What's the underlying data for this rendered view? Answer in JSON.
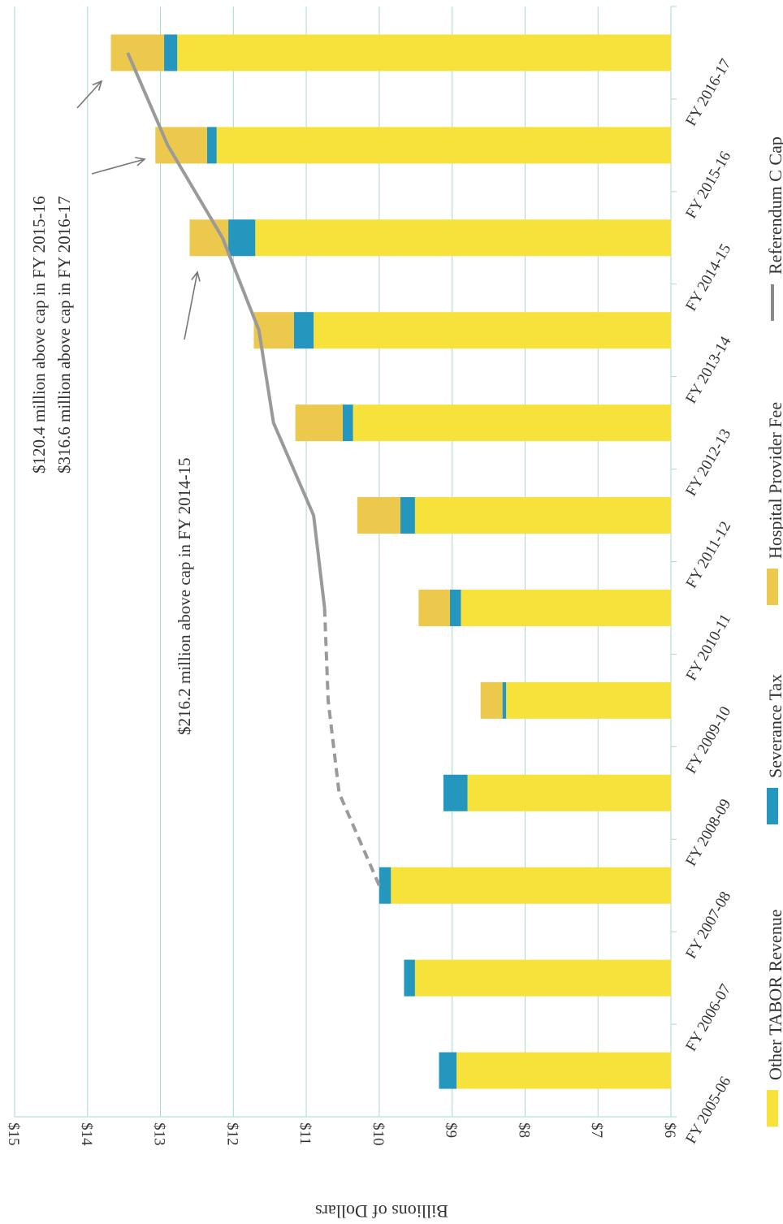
{
  "chart_data": {
    "type": "bar",
    "stacked": true,
    "orientation": "horizontal",
    "xlabel": "",
    "ylabel": "Billions of Dollars",
    "ylim": [
      6,
      15
    ],
    "ticks": [
      "$6",
      "$7",
      "$8",
      "$9",
      "$10",
      "$11",
      "$12",
      "$13",
      "$14",
      "$15"
    ],
    "tick_values": [
      6,
      7,
      8,
      9,
      10,
      11,
      12,
      13,
      14,
      15
    ],
    "grid": true,
    "legend_position": "bottom",
    "categories": [
      "FY 2005-06",
      "FY 2006-07",
      "FY 2007-08",
      "FY 2008-09",
      "FY 2009-10",
      "FY 2010-11",
      "FY 2011-12",
      "FY 2012-13",
      "FY 2013-14",
      "FY 2014-15",
      "FY 2015-16",
      "FY 2016-17"
    ],
    "series": [
      {
        "name": "Other TABOR Revenue",
        "color": "#f7e23c",
        "values": [
          2.94,
          3.51,
          3.84,
          2.79,
          2.26,
          2.88,
          3.51,
          4.36,
          4.9,
          5.7,
          6.23,
          6.77
        ]
      },
      {
        "name": "Severance Tax",
        "color": "#2596be",
        "values": [
          0.24,
          0.15,
          0.16,
          0.33,
          0.05,
          0.15,
          0.2,
          0.14,
          0.27,
          0.37,
          0.13,
          0.18
        ]
      },
      {
        "name": "Hospital Provider Fee",
        "color": "#ecc84c",
        "values": [
          0,
          0,
          0,
          0,
          0.3,
          0.43,
          0.59,
          0.65,
          0.55,
          0.53,
          0.71,
          0.73
        ]
      }
    ],
    "cap_line": {
      "name": "Referendum C Cap",
      "color": "#9a9a9a",
      "dashed_points": [
        [
          2,
          10.0
        ],
        [
          3,
          10.55
        ],
        [
          4,
          10.7
        ],
        [
          5,
          10.75
        ]
      ],
      "solid_points": [
        [
          5,
          10.75
        ],
        [
          6,
          10.9
        ],
        [
          7,
          11.45
        ],
        [
          8,
          11.65
        ],
        [
          9,
          12.15
        ],
        [
          10,
          12.9
        ],
        [
          11,
          13.45
        ]
      ]
    },
    "annotations": [
      {
        "text": "$120.4 million above cap in FY 2015-16",
        "target_index": 11
      },
      {
        "text": "$316.6 million above cap in FY 2016-17",
        "target_index": 10
      },
      {
        "text": "$216.2 million above cap in FY 2014-15",
        "target_index": 9
      }
    ]
  }
}
